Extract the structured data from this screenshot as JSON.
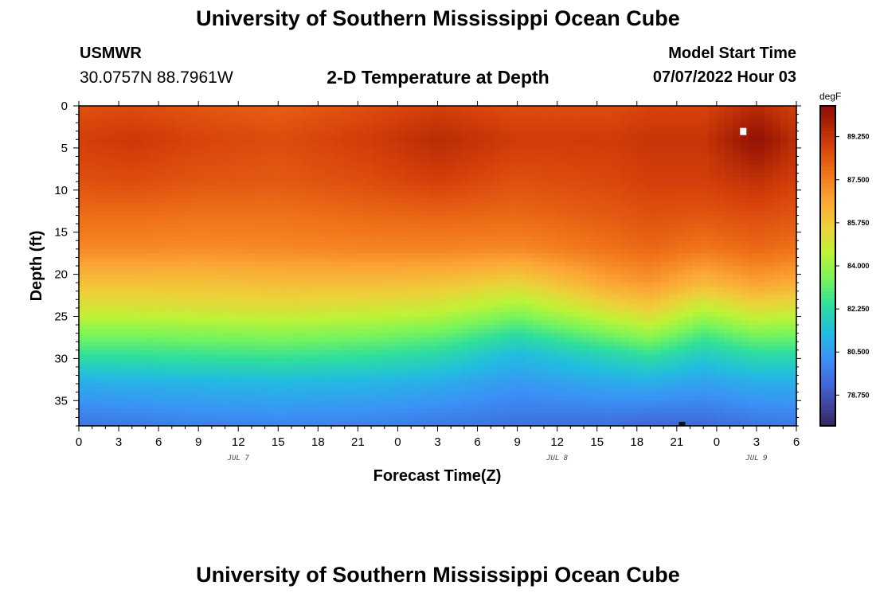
{
  "header": {
    "title": "University of Southern Mississippi Ocean Cube",
    "footer_title": "University of Southern Mississippi Ocean Cube",
    "station": "USMWR",
    "coordinates": "30.0757N  88.7961W",
    "plot_title": "2-D Temperature at Depth",
    "model_label": "Model Start Time",
    "model_time": "07/07/2022 Hour 03"
  },
  "chart_data": {
    "type": "heatmap",
    "title": "2-D Temperature at Depth",
    "xlabel": "Forecast Time(Z)",
    "ylabel": "Depth (ft)",
    "x_tick_labels": [
      "0",
      "3",
      "6",
      "9",
      "12",
      "15",
      "18",
      "21",
      "0",
      "3",
      "6",
      "9",
      "12",
      "15",
      "18",
      "21",
      "0",
      "3",
      "6"
    ],
    "x_hours": [
      0,
      3,
      6,
      9,
      12,
      15,
      18,
      21,
      24,
      27,
      30,
      33,
      36,
      39,
      42,
      45,
      48,
      51,
      54
    ],
    "xlim": [
      0,
      54
    ],
    "date_labels": [
      {
        "label": "JUL 7",
        "hour": 12
      },
      {
        "label": "JUL 8",
        "hour": 36
      },
      {
        "label": "JUL 9",
        "hour": 51
      }
    ],
    "y_ticks": [
      0,
      5,
      10,
      15,
      20,
      25,
      30,
      35
    ],
    "ylim": [
      0,
      38
    ],
    "y_inverted": true,
    "colorbar": {
      "unit": "degF",
      "labels": [
        "89.250",
        "87.500",
        "85.750",
        "84.000",
        "82.250",
        "80.500",
        "78.750"
      ],
      "values": [
        89.25,
        87.5,
        85.75,
        84.0,
        82.25,
        80.5,
        78.75
      ],
      "range": [
        77.5,
        90.5
      ]
    },
    "colormap": [
      "#30123b",
      "#3e3b8c",
      "#4166d8",
      "#3b91f6",
      "#22bce0",
      "#2ede9e",
      "#78f45a",
      "#bff336",
      "#eecf3a",
      "#fca535",
      "#f07319",
      "#d6410a",
      "#a41d04",
      "#7a0403"
    ],
    "cmap_range": [
      77,
      91
    ],
    "profile_depths": [
      0,
      4,
      9,
      13,
      17,
      21,
      24,
      27,
      29.5,
      33,
      38
    ],
    "profile_note": "temperature (degF) at profile_depths for each profile hour",
    "profiles": [
      {
        "hour": 0,
        "temps": [
          88.5,
          88.9,
          88.5,
          87.9,
          87.3,
          86.0,
          85.0,
          83.6,
          82.5,
          80.9,
          79.5
        ]
      },
      {
        "hour": 4,
        "temps": [
          88.6,
          89.1,
          88.6,
          87.9,
          87.3,
          86.0,
          85.0,
          83.6,
          82.5,
          81.0,
          79.6
        ]
      },
      {
        "hour": 9,
        "temps": [
          88.4,
          88.8,
          88.4,
          87.8,
          87.2,
          86.0,
          85.1,
          83.7,
          82.6,
          81.1,
          79.8
        ]
      },
      {
        "hour": 15,
        "temps": [
          88.2,
          88.6,
          88.3,
          87.8,
          87.3,
          86.1,
          85.2,
          83.8,
          82.7,
          81.2,
          79.9
        ]
      },
      {
        "hour": 22,
        "temps": [
          88.6,
          89.0,
          88.6,
          88.0,
          87.4,
          86.1,
          85.0,
          83.6,
          82.5,
          81.1,
          79.8
        ]
      },
      {
        "hour": 27,
        "temps": [
          88.9,
          89.5,
          88.9,
          88.1,
          87.4,
          86.0,
          84.8,
          83.3,
          82.2,
          80.9,
          79.6
        ]
      },
      {
        "hour": 33,
        "temps": [
          88.6,
          89.0,
          88.5,
          88.0,
          87.3,
          85.5,
          84.0,
          82.4,
          81.3,
          80.4,
          79.4
        ]
      },
      {
        "hour": 40,
        "temps": [
          88.6,
          89.0,
          88.7,
          88.3,
          87.8,
          86.7,
          85.3,
          83.5,
          82.1,
          80.8,
          79.3
        ]
      },
      {
        "hour": 43,
        "temps": [
          88.8,
          89.2,
          88.9,
          88.5,
          88.0,
          87.0,
          85.7,
          84.0,
          82.5,
          80.9,
          79.1
        ]
      },
      {
        "hour": 47,
        "temps": [
          88.8,
          89.2,
          88.9,
          88.4,
          87.7,
          86.2,
          84.6,
          82.9,
          81.8,
          80.6,
          79.2
        ]
      },
      {
        "hour": 51,
        "temps": [
          89.5,
          90.4,
          89.3,
          88.6,
          88.0,
          86.8,
          85.3,
          83.6,
          82.3,
          80.9,
          79.5
        ]
      },
      {
        "hour": 54,
        "temps": [
          88.9,
          89.4,
          88.9,
          88.4,
          87.8,
          86.5,
          85.1,
          83.5,
          82.3,
          80.9,
          79.6
        ]
      }
    ],
    "markers": [
      {
        "kind": "white-cell",
        "hour": 50.0,
        "depth": 3.0
      },
      {
        "kind": "black-cell",
        "hour": 45.4,
        "depth": 37.9
      }
    ]
  }
}
